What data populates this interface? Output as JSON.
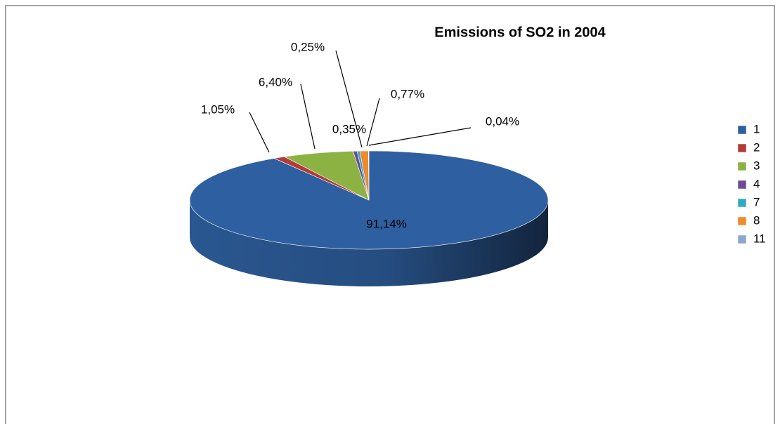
{
  "chart_data": {
    "type": "pie",
    "title": "Emissions of SO2 in 2004",
    "categories": [
      "1",
      "2",
      "3",
      "4",
      "7",
      "8",
      "11"
    ],
    "values": [
      91.14,
      1.05,
      6.4,
      0.35,
      0.25,
      0.77,
      0.04
    ],
    "value_labels": [
      "91,14%",
      "1,05%",
      "6,40%",
      "0,35%",
      "0,25%",
      "0,77%",
      "0,04%"
    ],
    "colors": [
      "#2e5fa0",
      "#b23b38",
      "#8cb244",
      "#6f4a98",
      "#32a9c3",
      "#ef8a2d",
      "#8fa6cc"
    ],
    "legend": "right"
  }
}
